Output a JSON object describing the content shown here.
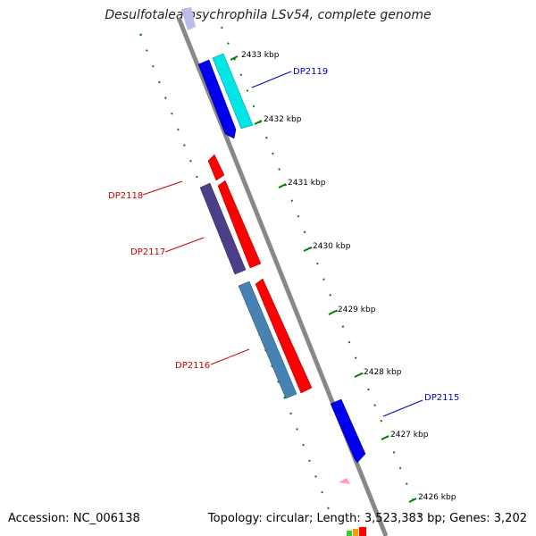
{
  "header": {
    "title": "Desulfotalea psychrophila LSv54, complete genome"
  },
  "footer": {
    "accession": "Accession: NC_006138",
    "summary": "Topology: circular; Length: 3,523,383 bp; Genes: 3,202"
  },
  "ticks": [
    {
      "label": "2433 kbp"
    },
    {
      "label": "2432 kbp"
    },
    {
      "label": "2431 kbp"
    },
    {
      "label": "2430 kbp"
    },
    {
      "label": "2429 kbp"
    },
    {
      "label": "2428 kbp"
    },
    {
      "label": "2427 kbp"
    },
    {
      "label": "2426 kbp"
    }
  ],
  "genes": [
    {
      "label": "DP2119",
      "color": "#0000cc"
    },
    {
      "label": "DP2118",
      "color": "#cc0000"
    },
    {
      "label": "DP2117",
      "color": "#cc0000"
    },
    {
      "label": "DP2116",
      "color": "#cc0000"
    },
    {
      "label": "DP2115",
      "color": "#0000cc"
    }
  ],
  "colors": {
    "backbone": "#888888",
    "ticks_outer": "#008000",
    "forward_blue": "#0000ee",
    "cyan": "#00e5e5",
    "red": "#ff0000",
    "slate": "#4b3f8a",
    "steel": "#4682b4",
    "pink": "#ff99cc",
    "lavender": "#bbbbee"
  }
}
